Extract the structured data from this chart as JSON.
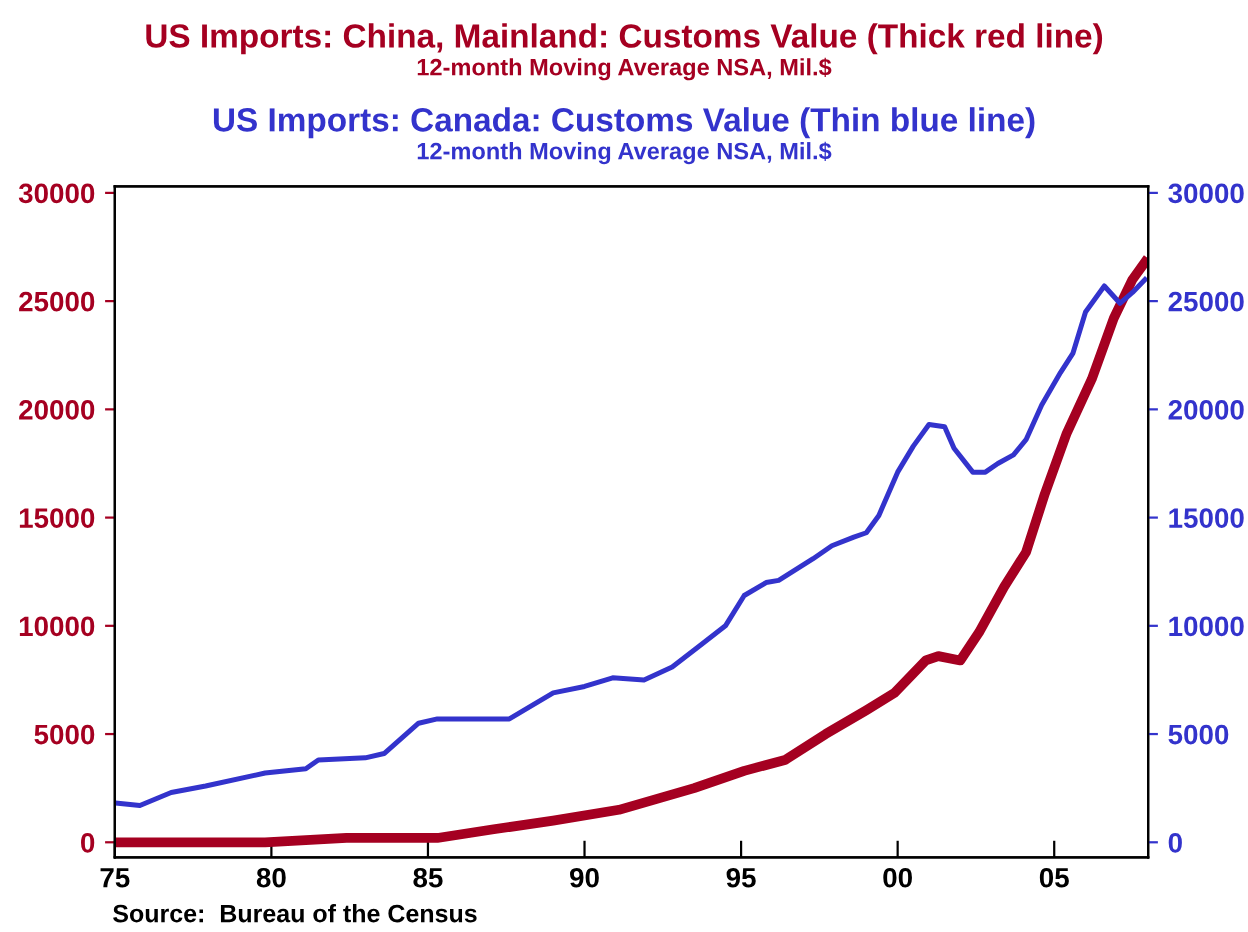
{
  "chart_data": {
    "type": "line",
    "title": "US Imports: China, Mainland: Customs Value (Thick red line)",
    "subtitle": "12-month Moving Average NSA, Mil.$",
    "annotations": [
      "US Imports: Canada: Customs Value (Thin blue line)",
      "12-month Moving Average NSA, Mil.$",
      "Source:  Bureau of the Census"
    ],
    "xlim": [
      1975,
      2008
    ],
    "xticks": [
      {
        "value": 1975,
        "label": "75"
      },
      {
        "value": 1980,
        "label": "80"
      },
      {
        "value": 1985,
        "label": "85"
      },
      {
        "value": 1990,
        "label": "90"
      },
      {
        "value": 1995,
        "label": "95"
      },
      {
        "value": 2000,
        "label": "00"
      },
      {
        "value": 2005,
        "label": "05"
      }
    ],
    "ylim": [
      -700,
      30300
    ],
    "yticks": [
      0,
      5000,
      10000,
      15000,
      20000,
      25000,
      30000
    ],
    "y2lim": [
      -700,
      30300
    ],
    "y2ticks": [
      0,
      5000,
      10000,
      15000,
      20000,
      25000,
      30000
    ],
    "grid": false,
    "series": [
      {
        "color": "#a50021",
        "x": [
          1975.1,
          1979.8,
          1982.4,
          1985.3,
          1987.1,
          1989,
          1991.1,
          1993.5,
          1995.1,
          1996.4,
          1997.7,
          1999.0,
          1999.9,
          2000.9,
          2001.3,
          2002.0,
          2002.6,
          2003.4,
          2004.1,
          2004.7,
          2005.4,
          2006.2,
          2006.9,
          2007.5,
          2007.9
        ],
        "values": [
          0,
          0,
          200,
          200,
          600,
          1000,
          1500,
          2500,
          3300,
          3800,
          5000,
          6100,
          6900,
          8400,
          8600,
          8400,
          9700,
          11800,
          13400,
          16100,
          18900,
          21400,
          24200,
          26000,
          26800
        ]
      },
      {
        "color": "#3333cc",
        "axis": "y2",
        "x": [
          1975.1,
          1975.8,
          1976.8,
          1977.9,
          1979.8,
          1981.1,
          1981.5,
          1983,
          1983.6,
          1984.7,
          1985.3,
          1987.6,
          1989,
          1990,
          1990.9,
          1991.9,
          1992.8,
          1993.7,
          1994.5,
          1995.1,
          1995.8,
          1996.2,
          1997.3,
          1997.9,
          1998.6,
          1999.0,
          1999.4,
          2000.0,
          2000.5,
          2001.0,
          2001.5,
          2001.8,
          2002.4,
          2002.8,
          2003.2,
          2003.7,
          2004.1,
          2004.6,
          2005.2,
          2005.6,
          2006.0,
          2006.6,
          2007.1,
          2007.5,
          2007.9
        ],
        "values": [
          1800,
          1700,
          2300,
          2600,
          3200,
          3400,
          3800,
          3900,
          4100,
          5500,
          5700,
          5700,
          6900,
          7200,
          7600,
          7500,
          8100,
          9100,
          10000,
          11400,
          12000,
          12100,
          13100,
          13700,
          14100,
          14300,
          15100,
          17100,
          18300,
          19300,
          19200,
          18200,
          17100,
          17100,
          17500,
          17900,
          18600,
          20200,
          21700,
          22600,
          24500,
          25700,
          24900,
          25400,
          26000
        ]
      }
    ]
  }
}
